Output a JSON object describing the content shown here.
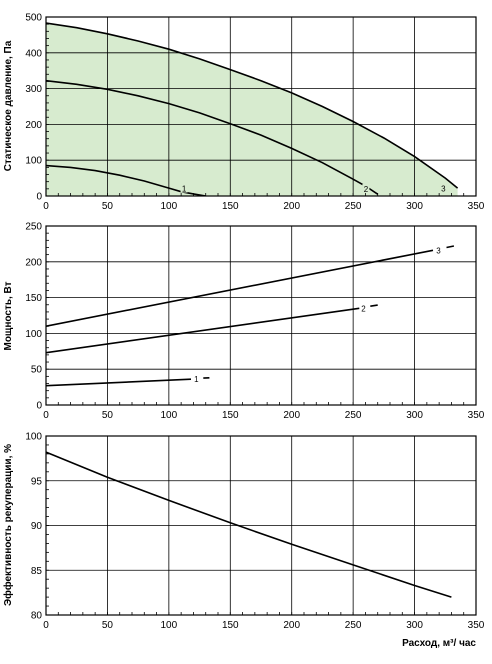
{
  "colors": {
    "fill": "#d7ebcf",
    "line": "#000000",
    "grid": "#000000"
  },
  "chart_data": [
    {
      "type": "line",
      "ylabel": "Статическое давление, Па",
      "xlim": [
        0,
        350
      ],
      "ylim": [
        0,
        500
      ],
      "xticks": [
        0,
        50,
        100,
        150,
        200,
        250,
        300,
        350
      ],
      "yticks": [
        0,
        100,
        200,
        300,
        400,
        500
      ],
      "grid": true,
      "shaded_region": "between curve 3 and x-axis",
      "series": [
        {
          "name": "1",
          "x": [
            0,
            20,
            40,
            60,
            80,
            100,
            110,
            120,
            130
          ],
          "y": [
            85,
            80,
            71,
            58,
            42,
            22,
            12,
            6,
            0
          ]
        },
        {
          "name": "2",
          "x": [
            0,
            25,
            50,
            75,
            100,
            125,
            150,
            175,
            200,
            225,
            250,
            260,
            270
          ],
          "y": [
            322,
            312,
            298,
            280,
            258,
            232,
            202,
            170,
            133,
            93,
            47,
            28,
            5
          ]
        },
        {
          "name": "3",
          "x": [
            0,
            25,
            50,
            75,
            100,
            125,
            150,
            175,
            200,
            225,
            250,
            275,
            300,
            325,
            335
          ],
          "y": [
            483,
            470,
            453,
            433,
            410,
            383,
            353,
            322,
            288,
            250,
            208,
            162,
            110,
            50,
            22
          ]
        }
      ],
      "curve_labels": [
        {
          "text": "1",
          "x": 112,
          "y": 21
        },
        {
          "text": "2",
          "x": 260,
          "y": 20
        },
        {
          "text": "3",
          "x": 323,
          "y": 21
        }
      ]
    },
    {
      "type": "line",
      "ylabel": "Мощность, Вт",
      "xlim": [
        0,
        350
      ],
      "ylim": [
        0,
        250
      ],
      "xticks": [
        0,
        50,
        100,
        150,
        200,
        250,
        300,
        350
      ],
      "yticks": [
        0,
        50,
        100,
        150,
        200,
        250
      ],
      "grid": true,
      "series": [
        {
          "name": "1",
          "x": [
            0,
            118
          ],
          "y": [
            27,
            36
          ],
          "dash_x": [
            128,
            133
          ],
          "dash_y": [
            37.5,
            38
          ]
        },
        {
          "name": "2",
          "x": [
            0,
            255
          ],
          "y": [
            73,
            135
          ],
          "dash_x": [
            264,
            270
          ],
          "dash_y": [
            138,
            139.5
          ]
        },
        {
          "name": "3",
          "x": [
            0,
            315
          ],
          "y": [
            110,
            216
          ],
          "dash_x": [
            326,
            332
          ],
          "dash_y": [
            220,
            222
          ]
        }
      ],
      "curve_labels": [
        {
          "text": "1",
          "x": 122,
          "y": 36
        },
        {
          "text": "2",
          "x": 258,
          "y": 135
        },
        {
          "text": "3",
          "x": 319,
          "y": 216
        }
      ]
    },
    {
      "type": "line",
      "ylabel": "Эффективность рекуперации, %",
      "xlabel": "Расход, м³/ час",
      "xlim": [
        0,
        350
      ],
      "ylim": [
        80,
        100
      ],
      "xticks": [
        0,
        50,
        100,
        150,
        200,
        250,
        300,
        350
      ],
      "yticks": [
        80,
        85,
        90,
        95,
        100
      ],
      "grid": true,
      "series": [
        {
          "name": "",
          "x": [
            0,
            50,
            100,
            150,
            200,
            250,
            300,
            330
          ],
          "y": [
            98.2,
            95.4,
            92.8,
            90.3,
            87.9,
            85.6,
            83.3,
            82
          ]
        }
      ]
    }
  ]
}
